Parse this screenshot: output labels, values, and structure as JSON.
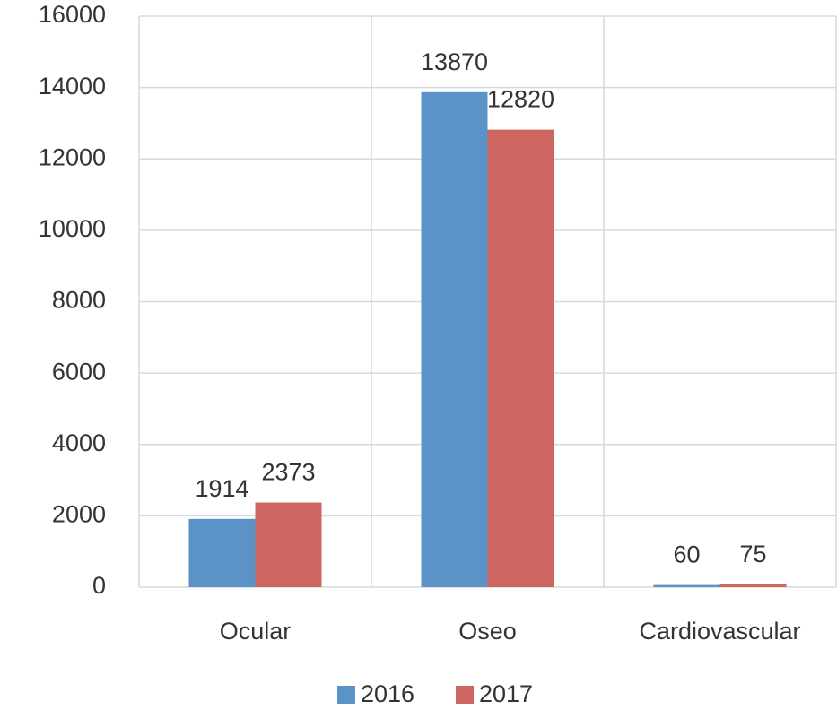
{
  "chart_data": {
    "type": "bar",
    "categories": [
      "Ocular",
      "Oseo",
      "Cardiovascular"
    ],
    "series": [
      {
        "name": "2016",
        "color": "#5b93c9",
        "values": [
          1914,
          13870,
          60
        ]
      },
      {
        "name": "2017",
        "color": "#cd6660",
        "values": [
          2373,
          12820,
          75
        ]
      }
    ],
    "ylim": [
      0,
      16000
    ],
    "yticks": [
      0,
      2000,
      4000,
      6000,
      8000,
      10000,
      12000,
      14000,
      16000
    ],
    "grid": true,
    "legend": "bottom"
  }
}
